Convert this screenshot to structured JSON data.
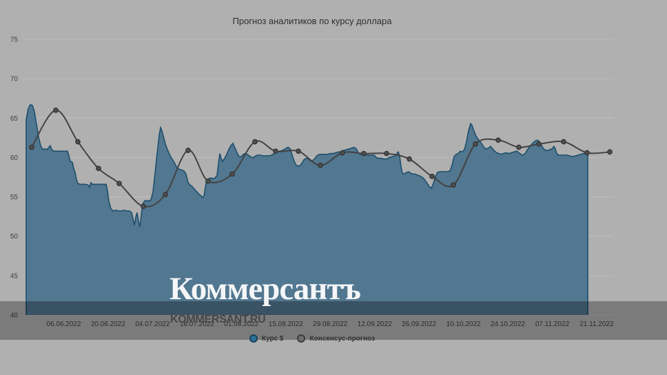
{
  "watermark": {
    "logo": "Коммерсантъ",
    "url": "KOMMERSANT.RU"
  },
  "chart_data": {
    "type": "area",
    "title": "Прогноз аналитиков по курсу доллара",
    "xlabel": "",
    "ylabel": "",
    "ylim": [
      40,
      75
    ],
    "yticks": [
      75,
      70,
      65,
      60,
      55,
      50,
      45,
      40
    ],
    "grid": "horizontal",
    "legend_position": "bottom",
    "xticks": [
      "06.06.2022",
      "20.06.2022",
      "04.07.2022",
      "18.07.2022",
      "01.08.2022",
      "15.08.2022",
      "29.08.2022",
      "12.09.2022",
      "26.09.2022",
      "10.10.2022",
      "24.10.2022",
      "07.11.2022",
      "21.11.2022"
    ],
    "colors": {
      "background": "#b0b0b0",
      "gridline": "#bdbdbd",
      "area_fill": "#527790",
      "area_stroke": "#1c4f6b",
      "consensus_line": "#424242",
      "consensus_marker": "#4f4f4f",
      "axis_label": "#3e3e3e"
    },
    "series": [
      {
        "name": "Курс $",
        "type": "area",
        "points": [
          [
            38,
            64.8
          ],
          [
            41,
            66.2
          ],
          [
            44,
            66.7
          ],
          [
            47,
            66.6
          ],
          [
            50,
            65.8
          ],
          [
            53,
            64.2
          ],
          [
            56,
            62.6
          ],
          [
            59,
            61.5
          ],
          [
            62,
            61.0
          ],
          [
            65,
            61.1
          ],
          [
            68,
            61.0
          ],
          [
            71,
            61.3
          ],
          [
            73,
            61.5
          ],
          [
            75,
            61.0
          ],
          [
            78,
            60.8
          ],
          [
            82,
            60.8
          ],
          [
            86,
            60.8
          ],
          [
            90,
            60.8
          ],
          [
            94,
            60.8
          ],
          [
            98,
            60.8
          ],
          [
            100,
            60.2
          ],
          [
            102,
            59.5
          ],
          [
            105,
            59.4
          ],
          [
            107,
            58.6
          ],
          [
            109,
            58.1
          ],
          [
            111,
            57.2
          ],
          [
            113,
            56.7
          ],
          [
            116,
            56.6
          ],
          [
            120,
            56.6
          ],
          [
            124,
            56.6
          ],
          [
            128,
            56.5
          ],
          [
            130,
            56.2
          ],
          [
            132,
            56.8
          ],
          [
            134,
            56.6
          ],
          [
            138,
            56.6
          ],
          [
            142,
            56.6
          ],
          [
            146,
            56.6
          ],
          [
            150,
            56.6
          ],
          [
            154,
            56.6
          ],
          [
            156,
            55.8
          ],
          [
            158,
            54.4
          ],
          [
            161,
            53.5
          ],
          [
            164,
            53.2
          ],
          [
            168,
            53.3
          ],
          [
            172,
            53.2
          ],
          [
            176,
            53.2
          ],
          [
            180,
            53.3
          ],
          [
            184,
            53.2
          ],
          [
            188,
            53.2
          ],
          [
            191,
            53.0
          ],
          [
            193,
            52.2
          ],
          [
            195,
            51.4
          ],
          [
            197,
            52.4
          ],
          [
            199,
            53.0
          ],
          [
            201,
            51.9
          ],
          [
            203,
            51.2
          ],
          [
            205,
            52.6
          ],
          [
            207,
            54.1
          ],
          [
            210,
            54.5
          ],
          [
            213,
            54.5
          ],
          [
            216,
            54.5
          ],
          [
            219,
            54.6
          ],
          [
            222,
            55.6
          ],
          [
            225,
            58.0
          ],
          [
            228,
            60.5
          ],
          [
            231,
            62.8
          ],
          [
            233,
            63.8
          ],
          [
            235,
            63.4
          ],
          [
            237,
            62.7
          ],
          [
            240,
            61.7
          ],
          [
            243,
            61.0
          ],
          [
            246,
            60.4
          ],
          [
            249,
            59.9
          ],
          [
            252,
            59.5
          ],
          [
            255,
            59.0
          ],
          [
            258,
            58.6
          ],
          [
            261,
            58.5
          ],
          [
            264,
            58.4
          ],
          [
            267,
            58.3
          ],
          [
            270,
            57.9
          ],
          [
            273,
            56.8
          ],
          [
            276,
            56.5
          ],
          [
            279,
            56.3
          ],
          [
            282,
            56.0
          ],
          [
            285,
            55.7
          ],
          [
            288,
            55.4
          ],
          [
            291,
            55.2
          ],
          [
            294,
            54.9
          ],
          [
            296,
            55.1
          ],
          [
            298,
            56.2
          ],
          [
            300,
            57.2
          ],
          [
            303,
            57.3
          ],
          [
            306,
            57.4
          ],
          [
            309,
            57.3
          ],
          [
            312,
            57.4
          ],
          [
            315,
            57.7
          ],
          [
            317,
            59.2
          ],
          [
            319,
            60.5
          ],
          [
            321,
            59.9
          ],
          [
            323,
            59.5
          ],
          [
            326,
            59.9
          ],
          [
            329,
            60.4
          ],
          [
            332,
            61.0
          ],
          [
            335,
            61.5
          ],
          [
            338,
            61.8
          ],
          [
            341,
            61.2
          ],
          [
            344,
            60.6
          ],
          [
            347,
            60.1
          ],
          [
            350,
            60.1
          ],
          [
            353,
            60.4
          ],
          [
            356,
            60.5
          ],
          [
            359,
            60.4
          ],
          [
            362,
            60.2
          ],
          [
            365,
            60.0
          ],
          [
            368,
            60.0
          ],
          [
            371,
            60.2
          ],
          [
            374,
            60.3
          ],
          [
            378,
            60.3
          ],
          [
            382,
            60.2
          ],
          [
            386,
            60.2
          ],
          [
            390,
            60.2
          ],
          [
            394,
            60.3
          ],
          [
            398,
            60.5
          ],
          [
            402,
            60.7
          ],
          [
            406,
            60.8
          ],
          [
            410,
            60.9
          ],
          [
            414,
            61.1
          ],
          [
            418,
            61.3
          ],
          [
            421,
            61.1
          ],
          [
            424,
            60.3
          ],
          [
            427,
            59.5
          ],
          [
            430,
            59.0
          ],
          [
            433,
            58.9
          ],
          [
            436,
            59.0
          ],
          [
            439,
            59.4
          ],
          [
            442,
            59.8
          ],
          [
            445,
            59.9
          ],
          [
            448,
            59.8
          ],
          [
            451,
            59.5
          ],
          [
            454,
            59.6
          ],
          [
            457,
            59.9
          ],
          [
            460,
            60.2
          ],
          [
            463,
            60.4
          ],
          [
            467,
            60.4
          ],
          [
            471,
            60.4
          ],
          [
            475,
            60.4
          ],
          [
            479,
            60.5
          ],
          [
            483,
            60.5
          ],
          [
            487,
            60.6
          ],
          [
            491,
            60.7
          ],
          [
            495,
            60.7
          ],
          [
            499,
            60.9
          ],
          [
            503,
            61.0
          ],
          [
            507,
            61.1
          ],
          [
            511,
            61.2
          ],
          [
            514,
            61.3
          ],
          [
            517,
            61.1
          ],
          [
            520,
            60.6
          ],
          [
            523,
            60.4
          ],
          [
            527,
            60.3
          ],
          [
            531,
            60.3
          ],
          [
            535,
            60.3
          ],
          [
            539,
            60.3
          ],
          [
            543,
            60.3
          ],
          [
            546,
            60.0
          ],
          [
            549,
            59.9
          ],
          [
            553,
            59.9
          ],
          [
            557,
            59.8
          ],
          [
            561,
            59.8
          ],
          [
            565,
            60.0
          ],
          [
            569,
            60.1
          ],
          [
            573,
            60.2
          ],
          [
            576,
            60.5
          ],
          [
            578,
            60.7
          ],
          [
            580,
            60.2
          ],
          [
            582,
            58.8
          ],
          [
            584,
            58.0
          ],
          [
            587,
            57.9
          ],
          [
            590,
            58.1
          ],
          [
            593,
            58.2
          ],
          [
            596,
            58.0
          ],
          [
            599,
            57.9
          ],
          [
            602,
            57.9
          ],
          [
            605,
            57.8
          ],
          [
            608,
            57.7
          ],
          [
            611,
            57.6
          ],
          [
            614,
            57.4
          ],
          [
            617,
            57.1
          ],
          [
            620,
            56.7
          ],
          [
            623,
            56.3
          ],
          [
            626,
            56.1
          ],
          [
            629,
            56.7
          ],
          [
            632,
            57.6
          ],
          [
            635,
            58.1
          ],
          [
            638,
            58.2
          ],
          [
            641,
            58.2
          ],
          [
            645,
            58.2
          ],
          [
            649,
            58.2
          ],
          [
            653,
            58.3
          ],
          [
            656,
            59.0
          ],
          [
            659,
            60.1
          ],
          [
            662,
            60.4
          ],
          [
            665,
            60.5
          ],
          [
            668,
            60.8
          ],
          [
            671,
            60.7
          ],
          [
            674,
            61.0
          ],
          [
            677,
            62.0
          ],
          [
            680,
            63.4
          ],
          [
            683,
            64.3
          ],
          [
            685,
            64.1
          ],
          [
            688,
            63.3
          ],
          [
            691,
            62.7
          ],
          [
            694,
            62.3
          ],
          [
            697,
            62.0
          ],
          [
            700,
            61.6
          ],
          [
            703,
            61.2
          ],
          [
            706,
            61.1
          ],
          [
            709,
            61.2
          ],
          [
            712,
            61.4
          ],
          [
            715,
            61.1
          ],
          [
            718,
            60.8
          ],
          [
            721,
            60.6
          ],
          [
            724,
            60.5
          ],
          [
            727,
            60.4
          ],
          [
            730,
            60.5
          ],
          [
            734,
            60.6
          ],
          [
            738,
            60.5
          ],
          [
            742,
            60.6
          ],
          [
            746,
            60.7
          ],
          [
            750,
            60.8
          ],
          [
            753,
            60.6
          ],
          [
            756,
            60.4
          ],
          [
            759,
            60.3
          ],
          [
            762,
            60.5
          ],
          [
            765,
            60.9
          ],
          [
            768,
            61.3
          ],
          [
            771,
            61.6
          ],
          [
            774,
            61.9
          ],
          [
            777,
            62.1
          ],
          [
            780,
            62.2
          ],
          [
            783,
            62.0
          ],
          [
            786,
            61.5
          ],
          [
            789,
            61.1
          ],
          [
            792,
            60.9
          ],
          [
            795,
            60.9
          ],
          [
            798,
            61.0
          ],
          [
            801,
            61.1
          ],
          [
            804,
            61.4
          ],
          [
            806,
            61.1
          ],
          [
            808,
            60.5
          ],
          [
            811,
            60.3
          ],
          [
            815,
            60.3
          ],
          [
            819,
            60.3
          ],
          [
            823,
            60.3
          ],
          [
            827,
            60.2
          ],
          [
            831,
            60.1
          ],
          [
            835,
            60.2
          ],
          [
            839,
            60.3
          ],
          [
            843,
            60.4
          ],
          [
            847,
            60.5
          ],
          [
            850,
            60.5
          ],
          [
            853,
            60.5
          ]
        ]
      },
      {
        "name": "Консенсус-прогноз",
        "type": "line",
        "points": [
          [
            46,
            61.3
          ],
          [
            81,
            66.0
          ],
          [
            113,
            62.0
          ],
          [
            143,
            58.6
          ],
          [
            173,
            56.7
          ],
          [
            208,
            53.8
          ],
          [
            240,
            55.3
          ],
          [
            273,
            60.9
          ],
          [
            302,
            57.0
          ],
          [
            337,
            57.9
          ],
          [
            370,
            62.0
          ],
          [
            400,
            60.8
          ],
          [
            433,
            60.8
          ],
          [
            465,
            59.0
          ],
          [
            497,
            60.6
          ],
          [
            528,
            60.5
          ],
          [
            561,
            60.5
          ],
          [
            594,
            59.8
          ],
          [
            627,
            57.6
          ],
          [
            658,
            56.5
          ],
          [
            690,
            61.7
          ],
          [
            723,
            62.2
          ],
          [
            753,
            61.3
          ],
          [
            782,
            61.7
          ],
          [
            818,
            62.0
          ],
          [
            852,
            60.6
          ],
          [
            885,
            60.7
          ]
        ]
      }
    ]
  }
}
